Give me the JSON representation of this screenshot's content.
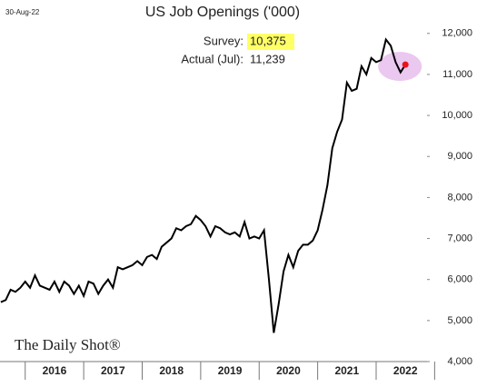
{
  "date_stamp": "30-Aug-22",
  "watermark": "The Daily Shot®",
  "annotations": [
    {
      "label": "Survey:",
      "text": "10,375"
    },
    {
      "label": "Actual (Jul):",
      "text": "11,239"
    }
  ],
  "chart_data": {
    "type": "line",
    "title": "US Job Openings ('000)",
    "x": [
      2015.583,
      2015.667,
      2015.75,
      2015.833,
      2015.917,
      2016,
      2016.083,
      2016.167,
      2016.25,
      2016.333,
      2016.417,
      2016.5,
      2016.583,
      2016.667,
      2016.75,
      2016.833,
      2016.917,
      2017,
      2017.083,
      2017.167,
      2017.25,
      2017.333,
      2017.417,
      2017.5,
      2017.583,
      2017.667,
      2017.75,
      2017.833,
      2017.917,
      2018,
      2018.083,
      2018.167,
      2018.25,
      2018.333,
      2018.417,
      2018.5,
      2018.583,
      2018.667,
      2018.75,
      2018.833,
      2018.917,
      2019,
      2019.083,
      2019.167,
      2019.25,
      2019.333,
      2019.417,
      2019.5,
      2019.583,
      2019.667,
      2019.75,
      2019.833,
      2019.917,
      2020,
      2020.083,
      2020.167,
      2020.25,
      2020.333,
      2020.417,
      2020.5,
      2020.583,
      2020.667,
      2020.75,
      2020.833,
      2020.917,
      2021,
      2021.083,
      2021.167,
      2021.25,
      2021.333,
      2021.417,
      2021.5,
      2021.583,
      2021.667,
      2021.75,
      2021.833,
      2021.917,
      2022,
      2022.083,
      2022.167,
      2022.25,
      2022.333,
      2022.417,
      2022.5
    ],
    "series": [
      {
        "name": "Job openings",
        "color": "#000000",
        "values": [
          5450,
          5500,
          5750,
          5700,
          5800,
          5950,
          5800,
          6100,
          5850,
          5800,
          5750,
          5950,
          5700,
          5950,
          5850,
          5650,
          5850,
          5600,
          5950,
          5900,
          5650,
          5850,
          6000,
          5800,
          6300,
          6250,
          6300,
          6350,
          6450,
          6350,
          6550,
          6600,
          6500,
          6800,
          6900,
          7000,
          7250,
          7200,
          7300,
          7350,
          7550,
          7450,
          7300,
          7050,
          7300,
          7250,
          7150,
          7100,
          7150,
          7050,
          7400,
          7000,
          7050,
          7000,
          7200,
          6000,
          4700,
          5400,
          6200,
          6600,
          6300,
          6700,
          6850,
          6850,
          6950,
          7200,
          7700,
          8300,
          9200,
          9600,
          9900,
          10800,
          10600,
          10650,
          11200,
          11000,
          11400,
          11300,
          11350,
          11850,
          11700,
          11300,
          11050,
          11239
        ]
      }
    ],
    "xlim": [
      2015.6,
      2022.87
    ],
    "xticks": [
      {
        "value": 2016.5,
        "label": "2016"
      },
      {
        "value": 2017.5,
        "label": "2017"
      },
      {
        "value": 2018.5,
        "label": "2018"
      },
      {
        "value": 2019.5,
        "label": "2019"
      },
      {
        "value": 2020.5,
        "label": "2020"
      },
      {
        "value": 2021.5,
        "label": "2021"
      },
      {
        "value": 2022.5,
        "label": "2022"
      }
    ],
    "ylim": [
      4000,
      12150
    ],
    "yticks": [
      {
        "value": 4000,
        "label": "4,000"
      },
      {
        "value": 5000,
        "label": "5,000"
      },
      {
        "value": 6000,
        "label": "6,000"
      },
      {
        "value": 7000,
        "label": "7,000"
      },
      {
        "value": 8000,
        "label": "8,000"
      },
      {
        "value": 9000,
        "label": "9,000"
      },
      {
        "value": 10000,
        "label": "10,000"
      },
      {
        "value": 11000,
        "label": "11,000"
      },
      {
        "value": 12000,
        "label": "12,000"
      }
    ],
    "last_point_color": "#e8141c",
    "highlight_color": "#ebc8f0"
  }
}
